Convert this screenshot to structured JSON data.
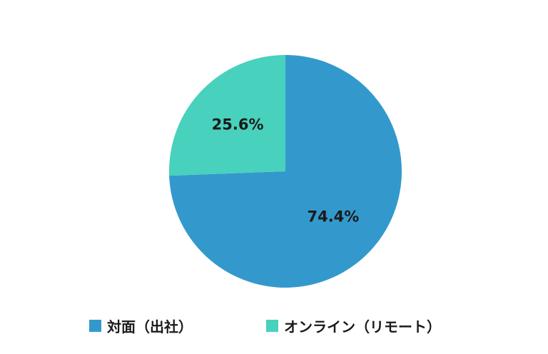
{
  "chart_data": {
    "type": "pie",
    "slices": [
      {
        "label": "対面（出社）",
        "value": 74.4,
        "value_label": "74.4%",
        "color": "#3399cc"
      },
      {
        "label": "オンライン（リモート）",
        "value": 25.6,
        "value_label": "25.6%",
        "color": "#48d1bd"
      }
    ],
    "start_angle": "12 o'clock",
    "direction": "clockwise",
    "legend_position": "bottom"
  }
}
